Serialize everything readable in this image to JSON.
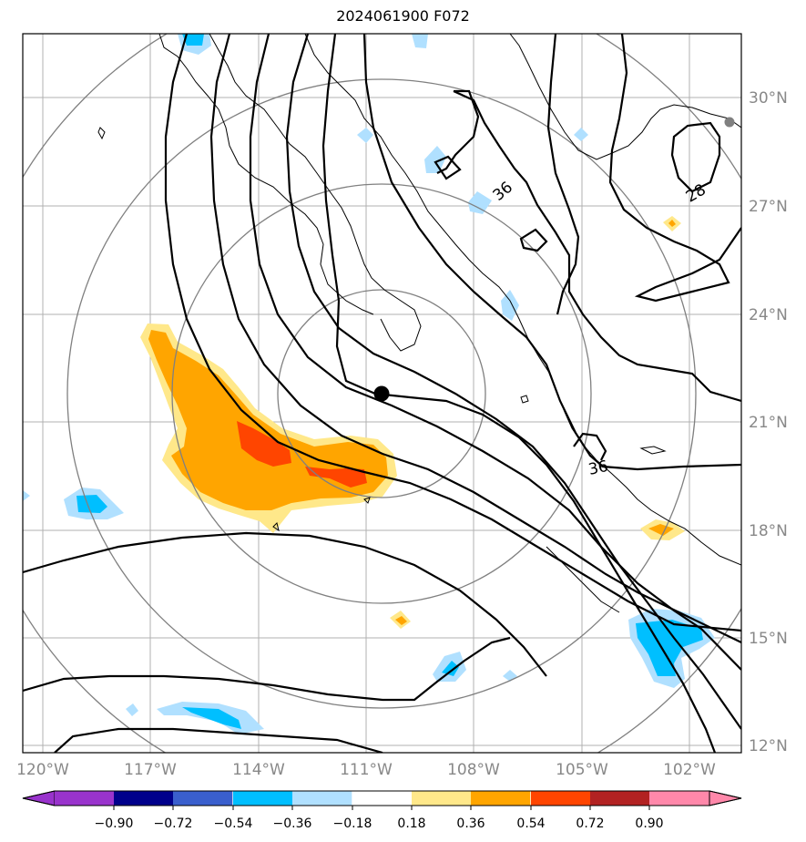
{
  "title": "2024061900 F072",
  "map": {
    "lon_labels": [
      "120°W",
      "117°W",
      "114°W",
      "111°W",
      "108°W",
      "105°W",
      "102°W"
    ],
    "lat_labels": [
      "30°N",
      "27°N",
      "24°N",
      "21°N",
      "18°N",
      "15°N",
      "12°N"
    ],
    "contour_labels": [
      "36",
      "28",
      "36"
    ],
    "storm_center": {
      "lon": -110.5,
      "lat": 21.8
    },
    "range_rings": "concentric distance rings around storm center",
    "colors": {
      "contour": "#000000",
      "ring": "#808080",
      "grid": "#b0b0b0",
      "center": "#000000"
    }
  },
  "colorbar": {
    "ticks": [
      "−0.90",
      "−0.72",
      "−0.54",
      "−0.36",
      "−0.18",
      "0.18",
      "0.36",
      "0.54",
      "0.72",
      "0.90"
    ],
    "colors": [
      "#9933cc",
      "#00008b",
      "#3a5fcd",
      "#00bfff",
      "#b0e0ff",
      "#ffffff",
      "#ffe88a",
      "#ffa500",
      "#ff4500",
      "#b22222",
      "#ff88aa"
    ]
  }
}
